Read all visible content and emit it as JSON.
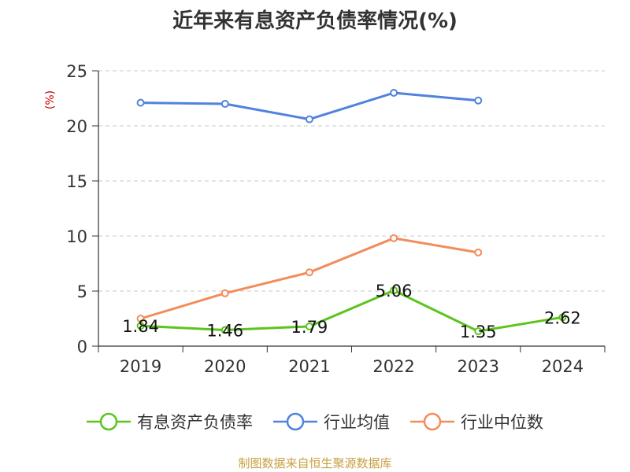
{
  "chart_data": {
    "type": "line",
    "title": "近年来有息资产负债率情况(%)",
    "y_unit": "(%)",
    "categories": [
      "2019",
      "2020",
      "2021",
      "2022",
      "2023",
      "2024"
    ],
    "ylim": [
      0,
      25
    ],
    "yticks": [
      "0",
      "5",
      "10",
      "15",
      "20",
      "25"
    ],
    "grid": true,
    "legend_position": "bottom",
    "series": [
      {
        "name": "有息资产负债率",
        "color": "#5cc41e",
        "values": [
          1.84,
          1.46,
          1.79,
          5.06,
          1.35,
          2.62
        ],
        "data_labels": [
          "1.84",
          "1.46",
          "1.79",
          "5.06",
          "1.35",
          "2.62"
        ]
      },
      {
        "name": "行业均值",
        "color": "#4f83dc",
        "values": [
          22.1,
          22.0,
          20.6,
          23.0,
          22.3,
          null
        ]
      },
      {
        "name": "行业中位数",
        "color": "#f28d5a",
        "values": [
          2.5,
          4.8,
          6.7,
          9.8,
          8.5,
          null
        ]
      }
    ]
  },
  "footer": {
    "source": "制图数据来自恒生聚源数据库"
  }
}
